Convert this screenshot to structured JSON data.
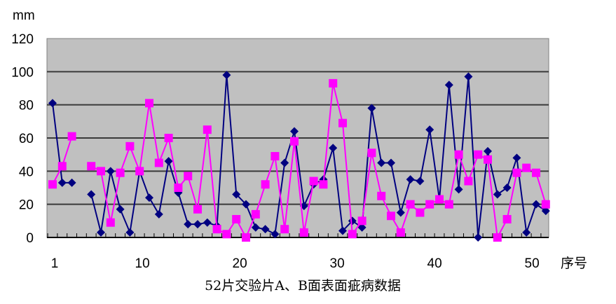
{
  "chart_data": {
    "type": "line",
    "title": "52片交验片A、B面表面疵病数据",
    "xlabel": "序号",
    "ylabel": "mm",
    "ylim": [
      0,
      120
    ],
    "yticks": [
      0,
      20,
      40,
      60,
      80,
      100,
      120
    ],
    "xticks": [
      1,
      10,
      20,
      30,
      40,
      50
    ],
    "grid": true,
    "legend": "none",
    "colors": {
      "plot_bg": "#c0c0c0",
      "series_a": "#000080",
      "series_b": "#ff00ff",
      "grid": "#000000"
    },
    "x": [
      1,
      2,
      3,
      4,
      5,
      6,
      7,
      8,
      9,
      10,
      11,
      12,
      13,
      14,
      15,
      16,
      17,
      18,
      19,
      20,
      21,
      22,
      23,
      24,
      25,
      26,
      27,
      28,
      29,
      30,
      31,
      32,
      33,
      34,
      35,
      36,
      37,
      38,
      39,
      40,
      41,
      42,
      43,
      44,
      45,
      46,
      47,
      48,
      49,
      50,
      51,
      52
    ],
    "series": [
      {
        "marker": "diamond",
        "values": [
          81,
          33,
          33,
          null,
          26,
          3,
          40,
          17,
          3,
          40,
          24,
          14,
          46,
          27,
          8,
          8,
          9,
          7,
          98,
          26,
          20,
          6,
          5,
          2,
          45,
          64,
          19,
          32,
          35,
          54,
          4,
          10,
          6,
          78,
          45,
          45,
          15,
          35,
          34,
          65,
          23,
          92,
          29,
          97,
          0,
          52,
          26,
          30,
          48,
          3,
          20,
          16
        ]
      },
      {
        "marker": "square",
        "values": [
          32,
          43,
          61,
          null,
          43,
          40,
          9,
          39,
          55,
          40,
          81,
          45,
          60,
          30,
          37,
          17,
          65,
          5,
          2,
          11,
          0,
          14,
          32,
          49,
          5,
          58,
          3,
          34,
          32,
          93,
          69,
          2,
          10,
          51,
          25,
          13,
          3,
          20,
          15,
          20,
          23,
          20,
          50,
          34,
          50,
          47,
          0,
          11,
          39,
          42,
          39,
          20
        ]
      }
    ]
  }
}
